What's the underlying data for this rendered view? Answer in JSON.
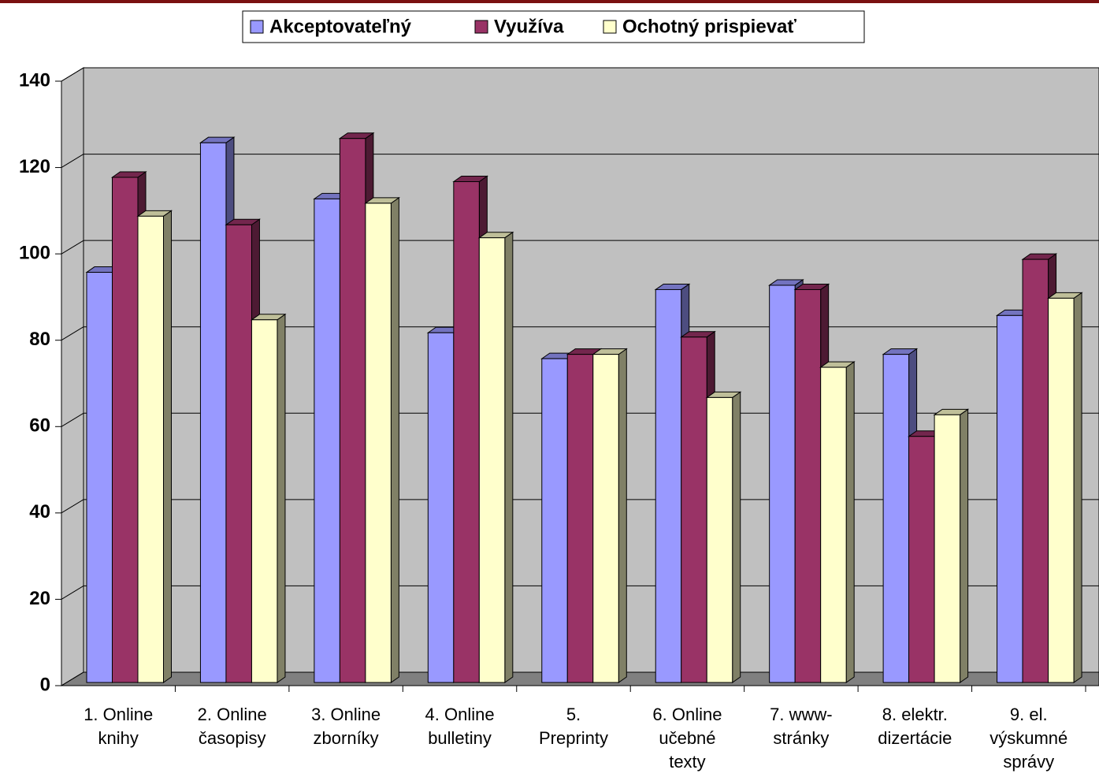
{
  "chart_data": {
    "type": "bar3d",
    "categories": [
      "1. Online knihy",
      "2. Online časopisy",
      "3. Online zborníky",
      "4. Online bulletiny",
      "5. Preprinty",
      "6. Online učebné texty",
      "7. www-stránky",
      "8. elektr. dizertácie",
      "9. el. výskumné správy"
    ],
    "series": [
      {
        "name": "Akceptovateľný",
        "color": "#9999ff",
        "values": [
          95,
          125,
          112,
          81,
          75,
          91,
          92,
          76,
          85
        ]
      },
      {
        "name": "Využíva",
        "color": "#993366",
        "values": [
          117,
          106,
          126,
          116,
          76,
          80,
          91,
          57,
          98
        ]
      },
      {
        "name": "Ochotný prispievať",
        "color": "#ffffcc",
        "values": [
          108,
          84,
          111,
          103,
          76,
          66,
          73,
          62,
          89
        ]
      }
    ],
    "ylim": [
      0,
      140
    ],
    "yticks": [
      0,
      20,
      40,
      60,
      80,
      100,
      120,
      140
    ],
    "grid": true,
    "legend": "top"
  }
}
